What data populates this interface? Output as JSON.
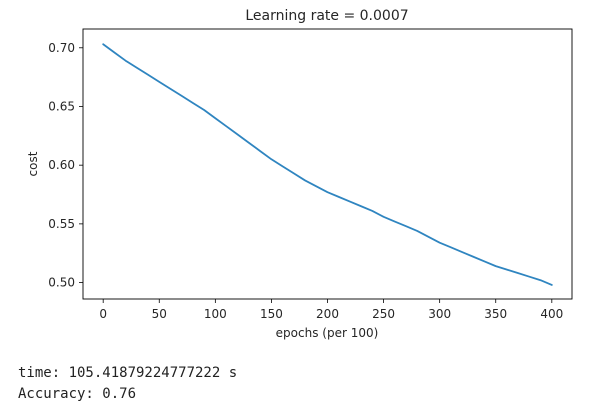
{
  "chart_data": {
    "type": "line",
    "title": "Learning rate = 0.0007",
    "xlabel": "epochs (per 100)",
    "ylabel": "cost",
    "xlim": [
      -18,
      418
    ],
    "ylim": [
      0.486,
      0.716
    ],
    "xticks": [
      0,
      50,
      100,
      150,
      200,
      250,
      300,
      350,
      400
    ],
    "yticks": [
      0.5,
      0.55,
      0.6,
      0.65,
      0.7
    ],
    "ytick_labels": [
      "0.50",
      "0.55",
      "0.60",
      "0.65",
      "0.70"
    ],
    "grid": false,
    "line_color": "#2f85c0",
    "series": [
      {
        "x": [
          0,
          10,
          20,
          30,
          40,
          50,
          60,
          70,
          80,
          90,
          100,
          110,
          120,
          130,
          140,
          150,
          160,
          170,
          180,
          190,
          200,
          210,
          220,
          230,
          240,
          250,
          260,
          270,
          280,
          290,
          300,
          310,
          320,
          330,
          340,
          350,
          360,
          370,
          380,
          390,
          400
        ],
        "values": [
          0.703,
          0.696,
          0.689,
          0.683,
          0.677,
          0.671,
          0.665,
          0.659,
          0.653,
          0.647,
          0.64,
          0.633,
          0.626,
          0.619,
          0.612,
          0.605,
          0.599,
          0.593,
          0.587,
          0.582,
          0.577,
          0.573,
          0.569,
          0.565,
          0.561,
          0.556,
          0.552,
          0.548,
          0.544,
          0.539,
          0.534,
          0.53,
          0.526,
          0.522,
          0.518,
          0.514,
          0.511,
          0.508,
          0.505,
          0.502,
          0.498
        ]
      }
    ]
  },
  "output": {
    "time_line": "time: 105.41879224777222 s",
    "accuracy_line": "Accuracy: 0.76"
  }
}
